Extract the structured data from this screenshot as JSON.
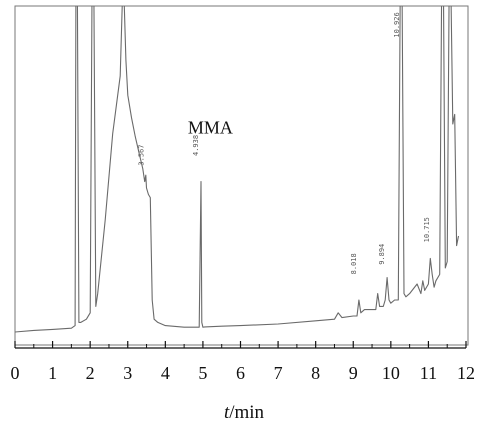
{
  "chart_data": {
    "type": "line",
    "title": "",
    "xlabel_var": "t",
    "xlabel_unit": "/min",
    "xlim": [
      0,
      12
    ],
    "x_ticks": [
      "0",
      "1",
      "2",
      "3",
      "4",
      "5",
      "6",
      "7",
      "8",
      "9",
      "10",
      "11",
      "12"
    ],
    "annotations": [
      {
        "text": "MMA",
        "x": 4.6,
        "y": 0.62
      }
    ],
    "peak_labels": [
      {
        "text": "3.567",
        "x": 3.5,
        "y": 0.52
      },
      {
        "text": "4.938",
        "x": 4.95,
        "y": 0.55
      },
      {
        "text": "8.018",
        "x": 9.15,
        "y": 0.18
      },
      {
        "text": "9.894",
        "x": 9.9,
        "y": 0.21
      },
      {
        "text": "10.926",
        "x": 10.3,
        "y": 0.92
      },
      {
        "text": "10.715",
        "x": 11.1,
        "y": 0.28
      }
    ],
    "series": [
      {
        "x": [
          0,
          0.5,
          1.0,
          1.5,
          1.6,
          1.62,
          1.66,
          1.7,
          1.75,
          1.9,
          2.0,
          2.05,
          2.1,
          2.15,
          2.2,
          2.4,
          2.6,
          2.8,
          2.86,
          2.9,
          2.95,
          3.0,
          3.1,
          3.2,
          3.3,
          3.4,
          3.45,
          3.48,
          3.5,
          3.55,
          3.6,
          3.65,
          3.7,
          3.8,
          4.0,
          4.5,
          4.9,
          4.95,
          4.97,
          5.0,
          5.05,
          5.5,
          6.0,
          7.0,
          8.0,
          8.5,
          8.6,
          8.7,
          9.0,
          9.1,
          9.15,
          9.2,
          9.3,
          9.6,
          9.65,
          9.7,
          9.8,
          9.85,
          9.9,
          9.95,
          10.0,
          10.1,
          10.2,
          10.25,
          10.3,
          10.35,
          10.4,
          10.5,
          10.7,
          10.8,
          10.85,
          10.9,
          11.0,
          11.05,
          11.1,
          11.15,
          11.2,
          11.3,
          11.35,
          11.4,
          11.45,
          11.5,
          11.55,
          11.6,
          11.65,
          11.7,
          11.75,
          11.8
        ],
        "y": [
          0.0,
          0.005,
          0.008,
          0.012,
          0.02,
          1.05,
          1.05,
          0.03,
          0.03,
          0.04,
          0.06,
          1.05,
          1.05,
          0.08,
          0.12,
          0.35,
          0.62,
          0.8,
          1.05,
          1.05,
          0.85,
          0.74,
          0.67,
          0.61,
          0.56,
          0.51,
          0.47,
          0.49,
          0.45,
          0.43,
          0.42,
          0.1,
          0.04,
          0.03,
          0.02,
          0.015,
          0.015,
          0.47,
          0.03,
          0.015,
          0.016,
          0.018,
          0.02,
          0.025,
          0.035,
          0.04,
          0.06,
          0.045,
          0.05,
          0.05,
          0.1,
          0.06,
          0.07,
          0.07,
          0.12,
          0.08,
          0.08,
          0.1,
          0.17,
          0.1,
          0.09,
          0.1,
          0.1,
          1.05,
          1.05,
          0.12,
          0.11,
          0.12,
          0.15,
          0.12,
          0.16,
          0.13,
          0.15,
          0.23,
          0.18,
          0.14,
          0.16,
          0.18,
          1.05,
          1.05,
          0.2,
          0.22,
          1.05,
          1.05,
          0.65,
          0.68,
          0.27,
          0.3
        ]
      }
    ]
  }
}
